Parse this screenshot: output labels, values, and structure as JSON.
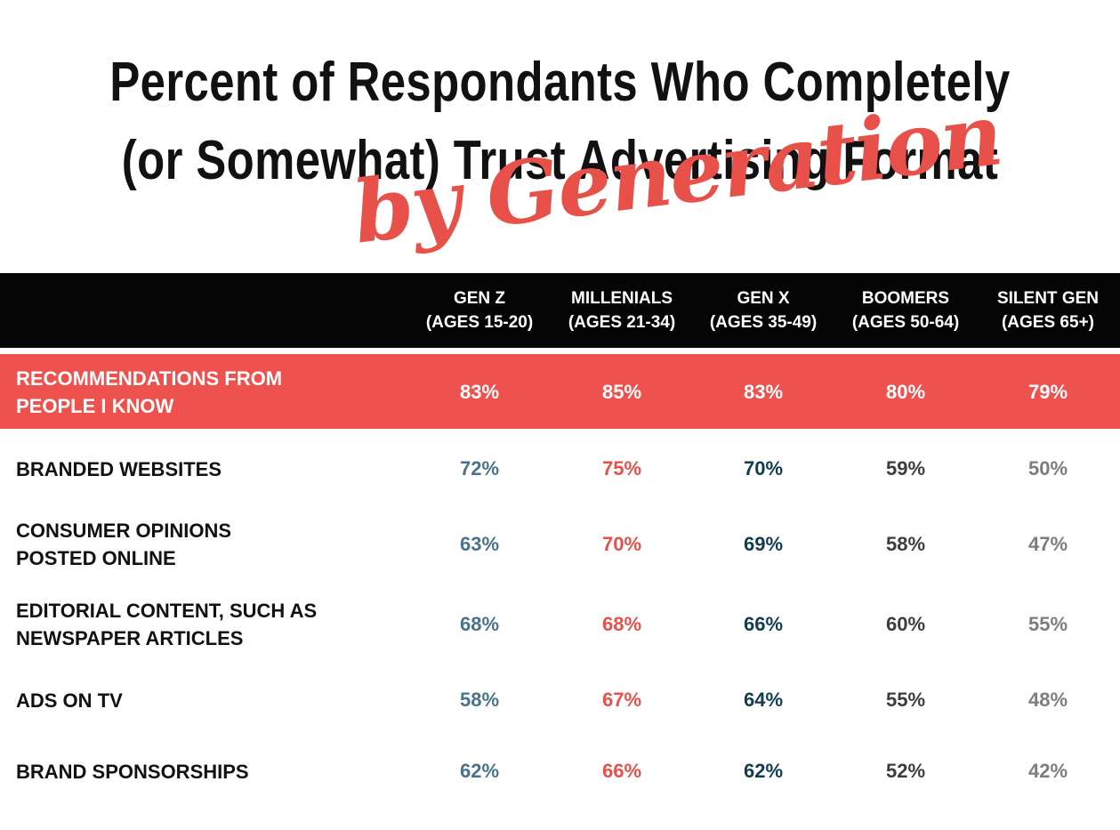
{
  "title_lines": [
    "Percent of Respondants Who Completely",
    "(or Somewhat) Trust Advertising Format"
  ],
  "subtitle": "by Generation",
  "colors": {
    "accent_red": "#ee524e",
    "header_black": "#050505",
    "gen_z": "#4a7389",
    "millenials": "#e8504a",
    "gen_x": "#123d4f",
    "boomers": "#3d3d3d",
    "silent_gen": "#7d7d7d",
    "highlight_text": "#ffffff"
  },
  "chart_data": {
    "type": "table",
    "title": "Percent of Respondants Who Completely (or Somewhat) Trust Advertising Format",
    "subtitle": "by Generation",
    "columns": [
      {
        "name": "GEN Z",
        "ages": "(AGES 15-20)"
      },
      {
        "name": "MILLENIALS",
        "ages": "(AGES 21-34)"
      },
      {
        "name": "GEN X",
        "ages": "(AGES 35-49)"
      },
      {
        "name": "BOOMERS",
        "ages": "(AGES 50-64)"
      },
      {
        "name": "SILENT GEN",
        "ages": "(AGES 65+)"
      }
    ],
    "rows": [
      {
        "label": [
          "RECOMMENDATIONS FROM",
          "PEOPLE I KNOW"
        ],
        "values": [
          "83%",
          "85%",
          "83%",
          "80%",
          "79%"
        ],
        "highlight": true
      },
      {
        "label": [
          "BRANDED WEBSITES"
        ],
        "values": [
          "72%",
          "75%",
          "70%",
          "59%",
          "50%"
        ],
        "highlight": false
      },
      {
        "label": [
          "CONSUMER OPINIONS",
          "POSTED ONLINE"
        ],
        "values": [
          "63%",
          "70%",
          "69%",
          "58%",
          "47%"
        ],
        "highlight": false
      },
      {
        "label": [
          "EDITORIAL CONTENT, SUCH AS",
          "NEWSPAPER ARTICLES"
        ],
        "values": [
          "68%",
          "68%",
          "66%",
          "60%",
          "55%"
        ],
        "highlight": false
      },
      {
        "label": [
          "ADS ON TV"
        ],
        "values": [
          "58%",
          "67%",
          "64%",
          "55%",
          "48%"
        ],
        "highlight": false
      },
      {
        "label": [
          "BRAND SPONSORSHIPS"
        ],
        "values": [
          "62%",
          "66%",
          "62%",
          "52%",
          "42%"
        ],
        "highlight": false
      }
    ]
  }
}
